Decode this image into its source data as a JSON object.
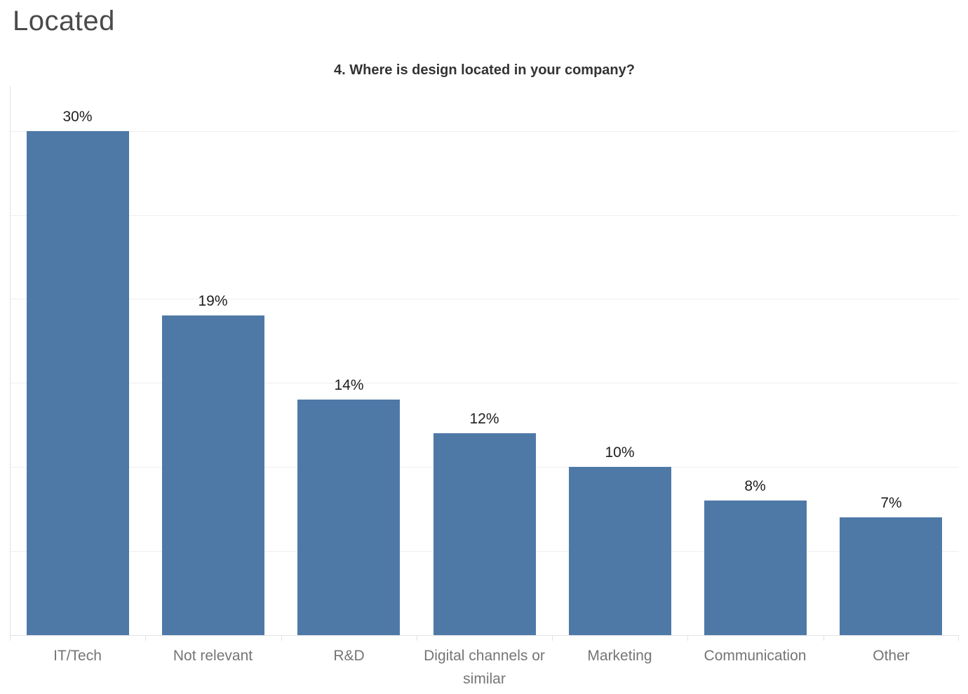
{
  "page": {
    "title": "Located"
  },
  "chart_data": {
    "type": "bar",
    "title": "4. Where is design located in your company?",
    "categories": [
      "IT/Tech",
      "Not relevant",
      "R&D",
      "Digital channels or similar",
      "Marketing",
      "Communication",
      "Other"
    ],
    "values": [
      30,
      19,
      14,
      12,
      10,
      8,
      7
    ],
    "value_labels": [
      "30%",
      "19%",
      "14%",
      "12%",
      "10%",
      "8%",
      "7%"
    ],
    "unit": "%",
    "xlabel": "",
    "ylabel": "",
    "ylim": [
      0,
      32.7
    ],
    "gridline_step": 5,
    "grid": "horizontal-only",
    "legend": "none",
    "colors": {
      "bar": "#4e79a7",
      "value_label": "#1e1e1e",
      "category_label": "#757575",
      "gridline": "#efefef",
      "axis_line": "#e2e2e2",
      "chart_title": "#333333",
      "page_title": "#4a4a4a"
    }
  }
}
